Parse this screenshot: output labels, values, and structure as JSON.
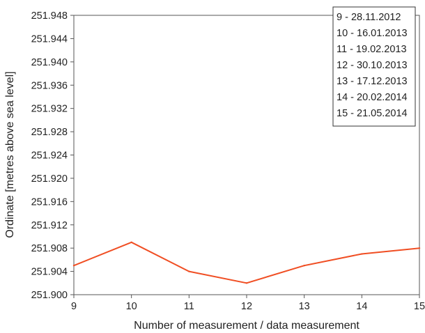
{
  "chart_data": {
    "type": "line",
    "title": "",
    "xlabel": "Number of measurement / data measurement",
    "ylabel": "Ordinate [metres above sea level]",
    "x": [
      9,
      10,
      11,
      12,
      13,
      14,
      15
    ],
    "xticks": [
      "9",
      "10",
      "11",
      "12",
      "13",
      "14",
      "15"
    ],
    "xlim": [
      9,
      15
    ],
    "ylim": [
      251.9,
      251.948
    ],
    "yticks": [
      "251.900",
      "251.904",
      "251.908",
      "251.912",
      "251.916",
      "251.920",
      "251.924",
      "251.928",
      "251.932",
      "251.936",
      "251.940",
      "251.944",
      "251.948"
    ],
    "series": [
      {
        "color": "#f04e23",
        "values": [
          251.905,
          251.909,
          251.904,
          251.902,
          251.905,
          251.907,
          251.908
        ]
      }
    ],
    "grid": false,
    "legend_position": "top-right",
    "legend_entries": [
      "9 - 28.11.2012",
      "10 - 16.01.2013",
      "11 - 19.02.2013",
      "12 - 30.10.2013",
      "13 - 17.12.2013",
      "14 - 20.02.2014",
      "15 - 21.05.2014"
    ]
  }
}
